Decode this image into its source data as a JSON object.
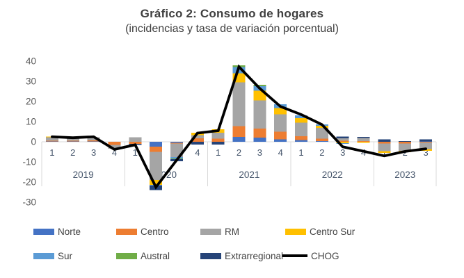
{
  "title": "Gráfico 2: Consumo de hogares",
  "subtitle": "(incidencias y tasa de variación porcentual)",
  "chart_data": {
    "type": "bar",
    "subtype": "stacked-bars-with-line",
    "groups": [
      {
        "year": "2019",
        "quarters": [
          "1",
          "2",
          "3",
          "4"
        ]
      },
      {
        "year": "2020",
        "quarters": [
          "1",
          "2",
          "3",
          "4"
        ]
      },
      {
        "year": "2021",
        "quarters": [
          "1",
          "2",
          "3",
          "4"
        ]
      },
      {
        "year": "2022",
        "quarters": [
          "1",
          "2",
          "3",
          "4"
        ]
      },
      {
        "year": "2023",
        "quarters": [
          "1",
          "2",
          "3"
        ]
      }
    ],
    "categories": [
      "2019-1",
      "2019-2",
      "2019-3",
      "2019-4",
      "2020-1",
      "2020-2",
      "2020-3",
      "2020-4",
      "2021-1",
      "2021-2",
      "2021-3",
      "2021-4",
      "2022-1",
      "2022-2",
      "2022-3",
      "2022-4",
      "2023-1",
      "2023-2",
      "2023-3"
    ],
    "series": [
      {
        "name": "Norte",
        "color": "#4472C4",
        "values": [
          0.3,
          0.2,
          0.2,
          0,
          0,
          -2.4,
          -0.5,
          0,
          0,
          2.5,
          2.0,
          1.2,
          0.8,
          0.4,
          0,
          0,
          0,
          0,
          0.2
        ]
      },
      {
        "name": "Centro",
        "color": "#ED7D31",
        "values": [
          0.2,
          0.3,
          0.5,
          -1.5,
          -1.0,
          -2.6,
          -0.3,
          1.7,
          1.5,
          5.3,
          4.6,
          3.8,
          2.0,
          1.2,
          0.5,
          0.4,
          -0.8,
          -0.8,
          -0.3
        ]
      },
      {
        "name": "RM",
        "color": "#A5A5A5",
        "values": [
          1.7,
          1.4,
          1.6,
          -2.0,
          2.2,
          -14.0,
          -6.8,
          1.5,
          3.0,
          21.7,
          14.0,
          8.7,
          6.6,
          5.3,
          1.3,
          1.5,
          -3.9,
          -3.6,
          -3.3
        ]
      },
      {
        "name": "Centro Sur",
        "color": "#FFC000",
        "values": [
          0.4,
          0,
          0,
          0,
          0,
          -2.3,
          0,
          1.2,
          1.7,
          4.5,
          4.7,
          3.0,
          2.3,
          1.0,
          -0.7,
          -0.5,
          -0.8,
          -0.8,
          -0.8
        ]
      },
      {
        "name": "Sur",
        "color": "#5B9BD5",
        "values": [
          0,
          0,
          0,
          0,
          0,
          -0.5,
          -0.7,
          0,
          0,
          3.0,
          2.3,
          2.0,
          1.4,
          0.8,
          -0.3,
          0,
          0,
          0,
          0
        ]
      },
      {
        "name": "Austral",
        "color": "#70AD47",
        "values": [
          0,
          0,
          0,
          0,
          0,
          0,
          -0.4,
          0,
          0,
          1.0,
          0.6,
          0,
          0,
          0,
          0,
          0,
          0,
          0,
          0
        ]
      },
      {
        "name": "Extrarregional",
        "color": "#264478",
        "values": [
          0,
          0,
          0,
          0,
          -0.6,
          -2.2,
          -1.0,
          -1.4,
          -1.3,
          0,
          0,
          0,
          0,
          0,
          0.8,
          0.5,
          1.2,
          0.3,
          1.0
        ]
      }
    ],
    "line": {
      "name": "CHOG",
      "color": "#000000",
      "values": [
        2.5,
        2.0,
        2.5,
        -3.8,
        -1.5,
        -22.5,
        -9.1,
        4.3,
        5.5,
        37.2,
        26.5,
        17.5,
        13.5,
        8.5,
        -2.5,
        -4.7,
        -7.0,
        -4.8,
        -3.5
      ]
    },
    "y_axis": {
      "min": -30,
      "max": 40,
      "step": 10,
      "ticks": [
        40,
        30,
        20,
        10,
        0,
        -10,
        -20,
        -30
      ]
    },
    "legend_position": "bottom",
    "grid": "none"
  }
}
